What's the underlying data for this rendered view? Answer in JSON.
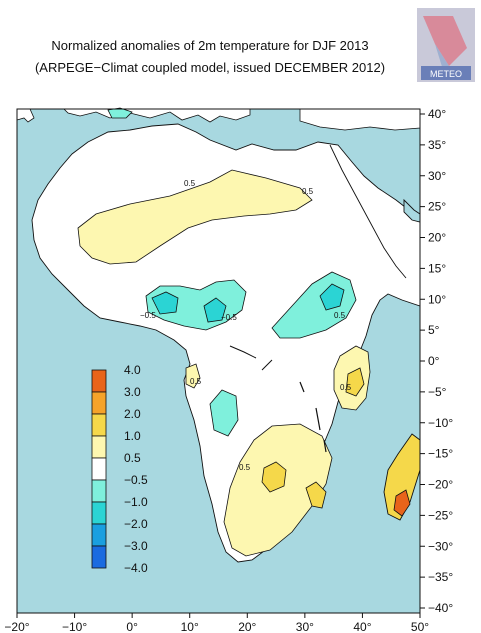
{
  "title_line1": "Normalized anomalies of 2m temperature for DJF 2013",
  "title_line2": "(ARPEGE−Climat coupled model, issued DECEMBER 2012)",
  "logo_text": "METEO",
  "lon_ticks": [
    "−20°",
    "−10°",
    "0°",
    "10°",
    "20°",
    "30°",
    "40°",
    "50°"
  ],
  "lat_ticks": [
    "40°",
    "35°",
    "30°",
    "25°",
    "20°",
    "15°",
    "10°",
    "5°",
    "0°",
    "−5°",
    "−10°",
    "−15°",
    "−20°",
    "−25°",
    "−30°",
    "−35°",
    "−40°"
  ],
  "colorbar_labels": [
    "4.0",
    "3.0",
    "2.0",
    "1.0",
    "0.5",
    "−0.5",
    "−1.0",
    "−2.0",
    "−3.0",
    "−4.0"
  ],
  "colorbar_colors": [
    "#e8641a",
    "#f5a32a",
    "#f5d84a",
    "#fdf7b0",
    "#ffffff",
    "#7ff0dc",
    "#2bd4d4",
    "#1a9fe0",
    "#1a6be0"
  ],
  "contour_labels": [
    "0.5",
    "0.5",
    "0.5",
    "0.5",
    "0.5",
    "0.5",
    "−0.5",
    "−0.5"
  ],
  "colors": {
    "ocean": "#a8d8e0",
    "land": "#ffffff"
  }
}
